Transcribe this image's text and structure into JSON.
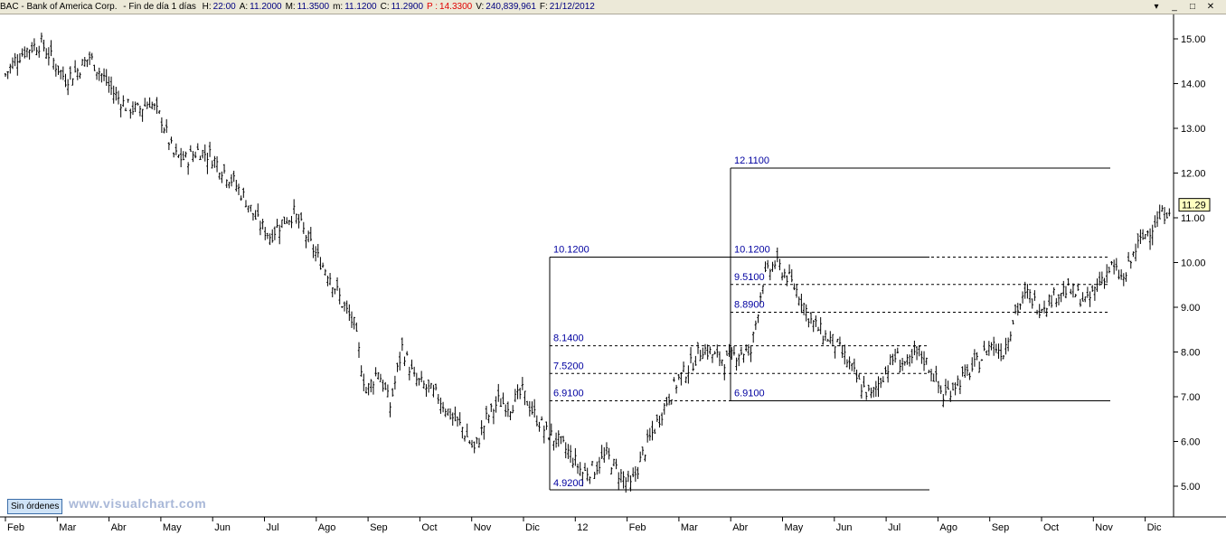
{
  "header": {
    "ticker": "BAC - Bank of America Corp.",
    "period": "- Fin de día 1 días",
    "fields": [
      {
        "label": "H:",
        "value": "22:00",
        "style": "val"
      },
      {
        "label": "A:",
        "value": "11.2000",
        "style": "val"
      },
      {
        "label": "M:",
        "value": "11.3500",
        "style": "val"
      },
      {
        "label": "m:",
        "value": "11.1200",
        "style": "val"
      },
      {
        "label": "C:",
        "value": "11.2900",
        "style": "val"
      },
      {
        "label": "P :",
        "value": "14.3300",
        "style": "val-p"
      },
      {
        "label": "V:",
        "value": "240,839,961",
        "style": "val"
      },
      {
        "label": "F:",
        "value": "21/12/2012",
        "style": "val"
      }
    ],
    "window_buttons": [
      "▾",
      "_",
      "□",
      "✕"
    ]
  },
  "footer": {
    "orders_label": "Sin órdenes",
    "watermark": "www.visualchart.com"
  },
  "chart_data": {
    "type": "candlestick",
    "title": "",
    "xlabel": "",
    "ylabel": "",
    "ylim": [
      4.5,
      15.5
    ],
    "y_ticks": [
      "15.00",
      "14.00",
      "13.00",
      "12.00",
      "11.00",
      "10.00",
      "9.00",
      "8.00",
      "7.00",
      "6.00",
      "5.00"
    ],
    "y_tick_values": [
      15,
      14,
      13,
      12,
      11,
      10,
      9,
      8,
      7,
      6,
      5
    ],
    "x_ticks": [
      "Feb",
      "Mar",
      "Abr",
      "May",
      "Jun",
      "Jul",
      "Ago",
      "Sep",
      "Oct",
      "Nov",
      "Dic",
      "12",
      "Feb",
      "Mar",
      "Abr",
      "May",
      "Jun",
      "Jul",
      "Ago",
      "Sep",
      "Oct",
      "Nov",
      "Dic"
    ],
    "last_price_label": "11.29",
    "last_price": 11.29,
    "series": [
      {
        "x": [
          0,
          5,
          10,
          15,
          20,
          25,
          30,
          35,
          40,
          45,
          50,
          55,
          60,
          65,
          70,
          75,
          80,
          85,
          90,
          95,
          100,
          105,
          110,
          115,
          120,
          125,
          130,
          135,
          140,
          145,
          150,
          155,
          160,
          165,
          170,
          175,
          180,
          185,
          190,
          195,
          200,
          205,
          210,
          215,
          220,
          225,
          230,
          235,
          240,
          245,
          250,
          255,
          260,
          265,
          270,
          275,
          280,
          285,
          290,
          295,
          300,
          305,
          310,
          315,
          320,
          325,
          330,
          335,
          340,
          345,
          350,
          355,
          360,
          365,
          370,
          375,
          380,
          385,
          390,
          395,
          400,
          405,
          410,
          415,
          420,
          425,
          430,
          435,
          440,
          445,
          450,
          455,
          460,
          465,
          470,
          475,
          480,
          485
        ],
        "close": [
          14.2,
          14.6,
          14.8,
          14.9,
          14.5,
          14.1,
          14.3,
          14.6,
          14.2,
          13.8,
          13.5,
          13.4,
          13.6,
          13.2,
          12.4,
          12.3,
          12.5,
          12.4,
          12.1,
          11.8,
          11.4,
          10.9,
          10.6,
          10.9,
          11.1,
          10.6,
          10.1,
          9.7,
          9.1,
          8.6,
          7.1,
          7.6,
          6.8,
          8.1,
          7.4,
          7.2,
          7.0,
          6.6,
          6.3,
          5.8,
          6.5,
          6.9,
          6.8,
          7.1,
          6.6,
          6.2,
          6.0,
          5.7,
          5.3,
          5.4,
          5.7,
          5.3,
          5.0,
          5.7,
          6.3,
          6.9,
          7.4,
          7.7,
          8.1,
          7.9,
          7.8,
          8.0,
          8.0,
          9.6,
          10.0,
          9.7,
          9.3,
          8.7,
          8.4,
          8.2,
          7.8,
          7.3,
          7.0,
          7.5,
          7.9,
          7.7,
          8.0,
          7.6,
          7.0,
          7.3,
          7.5,
          7.8,
          8.2,
          8.0,
          8.9,
          9.3,
          9.0,
          9.2,
          9.4,
          9.3,
          9.1,
          9.6,
          9.9,
          9.6,
          10.3,
          10.7,
          11.0,
          11.29
        ]
      }
    ],
    "annotations": [
      {
        "type": "retracement-box-1",
        "high": 10.12,
        "low": 4.92,
        "levels": [
          {
            "value": 10.12,
            "label": "10.1200"
          },
          {
            "value": 8.14,
            "label": "8.1400"
          },
          {
            "value": 7.52,
            "label": "7.5200"
          },
          {
            "value": 6.91,
            "label": "6.9100"
          },
          {
            "value": 4.92,
            "label": "4.9200"
          }
        ]
      },
      {
        "type": "retracement-box-2",
        "high": 12.11,
        "low": 6.91,
        "levels": [
          {
            "value": 12.11,
            "label": "12.1100"
          },
          {
            "value": 10.12,
            "label": "10.1200"
          },
          {
            "value": 9.51,
            "label": "9.5100"
          },
          {
            "value": 8.89,
            "label": "8.8900"
          },
          {
            "value": 6.91,
            "label": "6.9100"
          }
        ]
      }
    ],
    "grid": false,
    "legend": "none",
    "colors": {
      "candles": "#000000",
      "level_text": "#0000a0",
      "last_price_bg": "#ffffc0"
    }
  }
}
